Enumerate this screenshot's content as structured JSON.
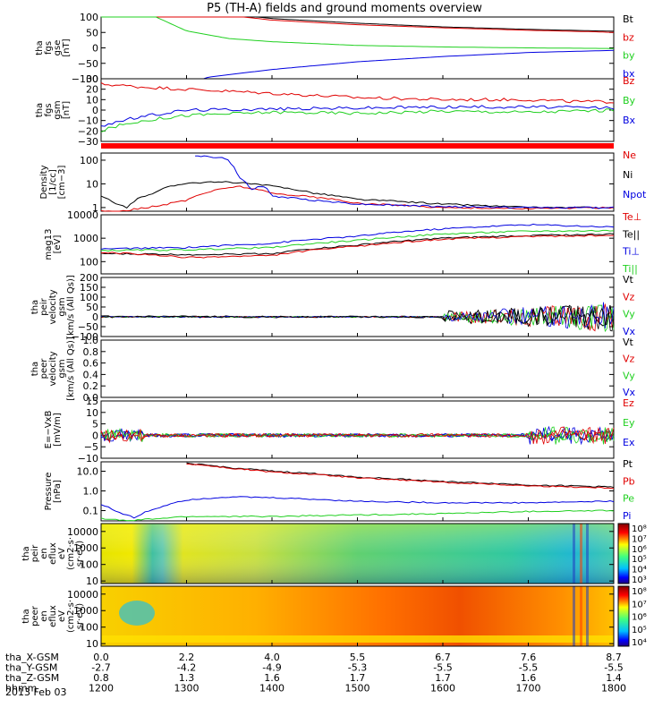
{
  "title": "P5 (TH-A) fields and ground moments overview",
  "date_label": "2013 Feb 03",
  "colors": {
    "black": "#000000",
    "red": "#e00000",
    "green": "#20d020",
    "blue": "#0000e0",
    "bar": "#ff0000"
  },
  "chart_data": {
    "type": "line",
    "x_range": [
      "1200",
      "1800"
    ],
    "x_ticks": [
      "1200",
      "1300",
      "1400",
      "1500",
      "1600",
      "1700",
      "1800"
    ],
    "ephemeris": [
      {
        "label": "tha_X-GSM",
        "values": [
          "0.0",
          "2.2",
          "4.0",
          "5.5",
          "6.7",
          "7.6",
          "8.7"
        ]
      },
      {
        "label": "tha_Y-GSM",
        "values": [
          "-2.7",
          "-4.2",
          "-4.9",
          "-5.3",
          "-5.5",
          "-5.5",
          "-5.5"
        ]
      },
      {
        "label": "tha_Z-GSM",
        "values": [
          "0.8",
          "1.3",
          "1.6",
          "1.7",
          "1.7",
          "1.6",
          "1.4"
        ]
      },
      {
        "label": "hhmm",
        "values": []
      }
    ],
    "panels": [
      {
        "id": "fgs-gse",
        "ylabel": [
          "tha",
          "fgs",
          "gse",
          "[nT]"
        ],
        "ylim": [
          -100,
          100
        ],
        "scale": "linear",
        "yticks": [
          "100",
          "50",
          "0",
          "−50",
          "−100"
        ],
        "legend": [
          {
            "text": "Bt",
            "color": "#000000"
          },
          {
            "text": "bz",
            "color": "#e00000"
          },
          {
            "text": "by",
            "color": "#20d020"
          },
          {
            "text": "bx",
            "color": "#0000e0"
          }
        ]
      },
      {
        "id": "fgs-gsm",
        "ylabel": [
          "tha",
          "fgs",
          "gsm",
          "[nT]"
        ],
        "ylim": [
          -30,
          30
        ],
        "scale": "linear",
        "yticks": [
          "30",
          "20",
          "10",
          "0",
          "−10",
          "−20",
          "−30"
        ],
        "legend": [
          {
            "text": "Bz",
            "color": "#e00000"
          },
          {
            "text": "By",
            "color": "#20d020"
          },
          {
            "text": "Bx",
            "color": "#0000e0"
          }
        ]
      },
      {
        "id": "density",
        "ylabel": [
          "Density",
          "[1/cc]",
          "[cm−3]"
        ],
        "ylim": [
          0.7,
          200
        ],
        "scale": "log",
        "yticks": [
          "100",
          "10",
          "1"
        ],
        "legend": [
          {
            "text": "Ne",
            "color": "#e00000"
          },
          {
            "text": "Ni",
            "color": "#000000"
          },
          {
            "text": "Npot",
            "color": "#0000e0"
          }
        ]
      },
      {
        "id": "temperature",
        "ylabel": [
          "mag13",
          "[eV]"
        ],
        "ylim": [
          30,
          10000
        ],
        "scale": "log",
        "yticks": [
          "10000",
          "1000",
          "100"
        ],
        "legend": [
          {
            "text": "Te⊥",
            "color": "#e00000"
          },
          {
            "text": "Te||",
            "color": "#000000"
          },
          {
            "text": "Ti⊥",
            "color": "#0000e0"
          },
          {
            "text": "Ti||",
            "color": "#20d020"
          }
        ]
      },
      {
        "id": "peir-velocity",
        "ylabel": [
          "tha",
          "peir",
          "velocity",
          "gsm",
          "[km/s (All Qs)]"
        ],
        "ylim": [
          -100,
          200
        ],
        "scale": "linear",
        "yticks": [
          "200",
          "150",
          "100",
          "50",
          "0",
          "−50",
          "−100"
        ],
        "legend": [
          {
            "text": "Vt",
            "color": "#000000"
          },
          {
            "text": "Vz",
            "color": "#e00000"
          },
          {
            "text": "Vy",
            "color": "#20d020"
          },
          {
            "text": "Vx",
            "color": "#0000e0"
          }
        ]
      },
      {
        "id": "peer-velocity",
        "ylabel": [
          "tha",
          "peer",
          "velocity",
          "gsm",
          "[km/s (All Qs)]"
        ],
        "ylim": [
          0,
          1
        ],
        "scale": "linear",
        "yticks": [
          "1.0",
          "0.8",
          "0.6",
          "0.4",
          "0.2",
          "0.0"
        ],
        "legend": [
          {
            "text": "Vt",
            "color": "#000000"
          },
          {
            "text": "Vz",
            "color": "#e00000"
          },
          {
            "text": "Vy",
            "color": "#20d020"
          },
          {
            "text": "Vx",
            "color": "#0000e0"
          }
        ]
      },
      {
        "id": "efield",
        "ylabel": [
          "E=−VxB",
          "[mV/m]"
        ],
        "ylim": [
          -10,
          15
        ],
        "scale": "linear",
        "yticks": [
          "15",
          "10",
          "5",
          "0",
          "−5",
          "−10"
        ],
        "legend": [
          {
            "text": "Ez",
            "color": "#e00000"
          },
          {
            "text": "Ey",
            "color": "#20d020"
          },
          {
            "text": "Ex",
            "color": "#0000e0"
          }
        ]
      },
      {
        "id": "pressure",
        "ylabel": [
          "Pressure",
          "[nPa]"
        ],
        "ylim": [
          0.03,
          30
        ],
        "scale": "log",
        "yticks": [
          "10.0",
          "1.0",
          "0.1"
        ],
        "legend": [
          {
            "text": "Pt",
            "color": "#000000"
          },
          {
            "text": "Pb",
            "color": "#e00000"
          },
          {
            "text": "Pe",
            "color": "#20d020"
          },
          {
            "text": "Pi",
            "color": "#0000e0"
          }
        ]
      },
      {
        "id": "peir-spec",
        "type": "heatmap",
        "ylabel": [
          "tha",
          "peir",
          "en",
          "eflux",
          "eV",
          "(cm2·s·",
          "sr·eV)"
        ],
        "ylim": [
          7,
          30000
        ],
        "scale": "log",
        "yticks": [
          "10000",
          "1000",
          "100",
          "10"
        ],
        "colorbar_ticks": [
          "10⁸",
          "10⁷",
          "10⁶",
          "10⁵",
          "10⁴",
          "10³"
        ]
      },
      {
        "id": "peer-spec",
        "type": "heatmap",
        "ylabel": [
          "tha",
          "peer",
          "en",
          "eflux",
          "eV",
          "(cm2·s·",
          "sr·eV)"
        ],
        "ylim": [
          7,
          30000
        ],
        "scale": "log",
        "yticks": [
          "10000",
          "1000",
          "100",
          "10"
        ],
        "colorbar_ticks": [
          "10⁸",
          "10⁷",
          "10⁶",
          "10⁵",
          "10⁴"
        ]
      }
    ],
    "series_shapes": {
      "fgs-gse": [
        {
          "name": "Bt",
          "color": "#000000",
          "x": [
            1200,
            1300,
            1350,
            1400,
            1500,
            1600,
            1700,
            1780,
            1800
          ],
          "y": [
            250,
            140,
            110,
            95,
            80,
            68,
            60,
            55,
            54
          ]
        },
        {
          "name": "bz",
          "color": "#e00000",
          "x": [
            1200,
            1300,
            1350,
            1400,
            1500,
            1600,
            1700,
            1780,
            1800
          ],
          "y": [
            240,
            130,
            105,
            90,
            75,
            65,
            57,
            52,
            50
          ]
        },
        {
          "name": "by",
          "color": "#20d020",
          "x": [
            1200,
            1250,
            1300,
            1350,
            1400,
            1450,
            1500,
            1600,
            1700,
            1800
          ],
          "y": [
            200,
            118,
            55,
            30,
            20,
            14,
            8,
            3,
            0,
            -2
          ]
        },
        {
          "name": "bx",
          "color": "#0000e0",
          "x": [
            1200,
            1300,
            1325,
            1400,
            1500,
            1600,
            1700,
            1800
          ],
          "y": [
            -300,
            -130,
            -95,
            -70,
            -45,
            -28,
            -15,
            -8
          ]
        }
      ],
      "fgs-gsm": [
        {
          "name": "Bz",
          "color": "#e00000",
          "x": [
            1200,
            1250,
            1300,
            1400,
            1500,
            1600,
            1700,
            1760,
            1800
          ],
          "y": [
            25,
            22,
            20,
            16,
            12,
            10,
            10,
            8,
            8
          ]
        },
        {
          "name": "By",
          "color": "#20d020",
          "x": [
            1200,
            1220,
            1250,
            1300,
            1400,
            1500,
            1600,
            1700,
            1800
          ],
          "y": [
            -20,
            -15,
            -10,
            -5,
            -2,
            -3,
            -1,
            -2,
            0
          ]
        },
        {
          "name": "Bx",
          "color": "#0000e0",
          "x": [
            1200,
            1225,
            1250,
            1300,
            1400,
            1500,
            1600,
            1700,
            1800
          ],
          "y": [
            -15,
            -10,
            -6,
            0,
            1,
            2,
            3,
            3,
            2
          ]
        }
      ],
      "density": [
        {
          "name": "Ni",
          "color": "#000000",
          "x": [
            1200,
            1215,
            1230,
            1260,
            1300,
            1350,
            1400,
            1450,
            1500,
            1600,
            1700,
            1800
          ],
          "y": [
            3,
            1.5,
            1,
            4,
            11,
            12,
            8,
            4,
            2.2,
            1.4,
            1,
            1
          ]
        },
        {
          "name": "Ne",
          "color": "#e00000",
          "x": [
            1200,
            1230,
            1270,
            1300,
            1330,
            1360,
            1400,
            1500,
            1600,
            1700,
            1800
          ],
          "y": [
            0.7,
            0.75,
            1.2,
            2,
            5,
            8,
            4,
            1.5,
            1,
            0.9,
            1
          ]
        },
        {
          "name": "Npot",
          "color": "#0000e0",
          "x": [
            1310,
            1325,
            1345,
            1360,
            1375,
            1390,
            1400,
            1450,
            1500,
            1600,
            1700,
            1800
          ],
          "y": [
            160,
            140,
            120,
            20,
            6,
            8,
            3,
            2,
            1.4,
            1.1,
            1,
            1
          ]
        }
      ],
      "temperature": [
        {
          "name": "Ti⊥",
          "color": "#0000e0",
          "x": [
            1200,
            1300,
            1400,
            1500,
            1600,
            1700,
            1800
          ],
          "y": [
            350,
            400,
            600,
            1200,
            2500,
            3800,
            3000
          ]
        },
        {
          "name": "Ti||",
          "color": "#20d020",
          "x": [
            1200,
            1300,
            1400,
            1500,
            1600,
            1700,
            1800
          ],
          "y": [
            300,
            320,
            400,
            800,
            1500,
            2000,
            2100
          ]
        },
        {
          "name": "Te||",
          "color": "#000000",
          "x": [
            1200,
            1300,
            1400,
            1500,
            1600,
            1700,
            1800
          ],
          "y": [
            220,
            200,
            220,
            500,
            1000,
            1300,
            1500
          ]
        },
        {
          "name": "Te⊥",
          "color": "#e00000",
          "x": [
            1200,
            1300,
            1400,
            1500,
            1600,
            1700,
            1800
          ],
          "y": [
            250,
            150,
            180,
            450,
            900,
            1200,
            1300
          ]
        }
      ],
      "peir-velocity": [
        {
          "name": "Vt",
          "color": "#000000",
          "x": [
            1200,
            1400,
            1600,
            1800
          ],
          "y": [
            0,
            0,
            0,
            0
          ]
        }
      ],
      "peer-velocity": [],
      "efield": [
        {
          "name": "Ex",
          "color": "#0000e0",
          "x": [
            1200,
            1800
          ],
          "y": [
            0,
            0
          ]
        },
        {
          "name": "Ey",
          "color": "#20d020",
          "x": [
            1200,
            1800
          ],
          "y": [
            0,
            0
          ]
        },
        {
          "name": "Ez",
          "color": "#e00000",
          "x": [
            1200,
            1800
          ],
          "y": [
            0,
            0
          ]
        }
      ],
      "pressure": [
        {
          "name": "Pt",
          "color": "#000000",
          "x": [
            1300,
            1350,
            1400,
            1500,
            1600,
            1700,
            1800
          ],
          "y": [
            25,
            15,
            10,
            5,
            3,
            2,
            1.6
          ]
        },
        {
          "name": "Pb",
          "color": "#e00000",
          "x": [
            1300,
            1350,
            1400,
            1500,
            1600,
            1700,
            1800
          ],
          "y": [
            24,
            14,
            9,
            4.5,
            2.7,
            1.8,
            1.4
          ]
        },
        {
          "name": "Pi",
          "color": "#0000e0",
          "x": [
            1200,
            1220,
            1240,
            1270,
            1300,
            1350,
            1400,
            1500,
            1600,
            1700,
            1800
          ],
          "y": [
            0.2,
            0.08,
            0.04,
            0.15,
            0.35,
            0.5,
            0.45,
            0.3,
            0.25,
            0.25,
            0.3
          ]
        },
        {
          "name": "Pe",
          "color": "#20d020",
          "x": [
            1200,
            1230,
            1270,
            1300,
            1400,
            1500,
            1600,
            1700,
            1800
          ],
          "y": [
            0.04,
            0.03,
            0.04,
            0.05,
            0.05,
            0.06,
            0.07,
            0.09,
            0.1
          ]
        }
      ]
    }
  }
}
